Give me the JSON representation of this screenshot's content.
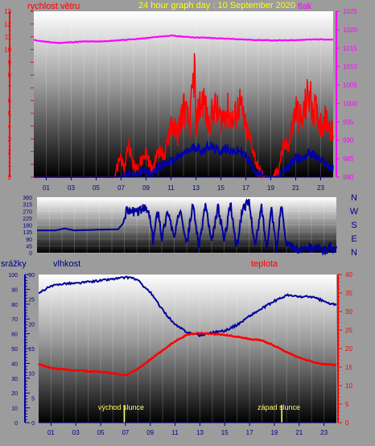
{
  "header": {
    "left_label": "rychlost větru",
    "title": "24 hour graph day : 10 September 2020",
    "right_label": "tlak"
  },
  "compass": [
    "N",
    "W",
    "S",
    "E",
    "N"
  ],
  "bottom_labels": {
    "rain": "srážky",
    "humidity": "vlhkost",
    "temperature": "teplota"
  },
  "sun": {
    "sunrise_label": "východ slunce",
    "sunrise_hour": 6.9,
    "sunset_label": "západ slunce",
    "sunset_hour": 19.6
  },
  "colors": {
    "wind": "#ff0000",
    "pressure": "#ff00ff",
    "direction": "#000099",
    "humidity": "#000099",
    "temperature": "#ff0000",
    "left_axis": "#ff0000",
    "right_axis": "#ff00ff",
    "rain_axis": "#0000aa"
  },
  "chart_data": [
    {
      "type": "line",
      "name": "wind-pressure",
      "x_ticks": [
        "01",
        "03",
        "05",
        "07",
        "09",
        "11",
        "13",
        "15",
        "17",
        "19",
        "21",
        "23"
      ],
      "left_axis": {
        "ticks": [
          0,
          1,
          2,
          3,
          4,
          5,
          6,
          7,
          8,
          9,
          10,
          11,
          12,
          13
        ],
        "ylim": [
          0,
          13
        ]
      },
      "right_axis": {
        "ticks": [
          980,
          985,
          990,
          995,
          1000,
          1005,
          1010,
          1015,
          1020,
          1025
        ],
        "ylim": [
          980,
          1025
        ]
      },
      "series": [
        {
          "key": "pressure",
          "axis": "right",
          "x": [
            0,
            1,
            2,
            3,
            4,
            5,
            6,
            7,
            8,
            9,
            10,
            11,
            12,
            13,
            14,
            15,
            16,
            17,
            18,
            19,
            20,
            21,
            22,
            23,
            24
          ],
          "values": [
            1017.2,
            1016.7,
            1016.4,
            1016.6,
            1016.8,
            1016.8,
            1016.9,
            1017.2,
            1017.4,
            1017.7,
            1018.1,
            1018.4,
            1018.1,
            1017.9,
            1017.8,
            1017.6,
            1017.5,
            1017.3,
            1017.2,
            1017.1,
            1017.1,
            1017.2,
            1017.3,
            1017.4,
            1017.3
          ]
        },
        {
          "key": "wind_gust",
          "axis": "left",
          "x": [
            0,
            6.5,
            7.0,
            7.2,
            7.6,
            8.0,
            8.6,
            9.0,
            9.5,
            10.0,
            10.5,
            11.0,
            11.5,
            12.0,
            12.5,
            12.9,
            13.0,
            13.2,
            13.6,
            14.0,
            14.5,
            15.0,
            15.5,
            16.0,
            16.5,
            17.0,
            17.5,
            18.0,
            18.5,
            19.0,
            19.5,
            20.0,
            20.5,
            21.0,
            21.5,
            22.0,
            22.5,
            23.0,
            23.5,
            24.0
          ],
          "values": [
            0,
            0,
            1.8,
            0.3,
            2.8,
            0.8,
            1.2,
            2.0,
            0.4,
            2.2,
            1.5,
            4.5,
            3.2,
            5.5,
            4.0,
            8.8,
            3.5,
            5.3,
            6.2,
            4.0,
            5.5,
            4.5,
            5.3,
            4.3,
            5.8,
            3.8,
            2.5,
            0.5,
            0,
            0,
            0.3,
            2.3,
            2.7,
            5.4,
            4.3,
            6.5,
            5.3,
            4.2,
            4.6,
            3.2
          ]
        },
        {
          "key": "wind_avg",
          "axis": "left",
          "x": [
            0,
            6.8,
            7.5,
            8.0,
            8.7,
            9.0,
            9.5,
            10.0,
            10.5,
            11.0,
            11.5,
            12.0,
            12.5,
            13.0,
            13.5,
            14.0,
            14.5,
            15.0,
            15.5,
            16.0,
            16.5,
            17.0,
            17.5,
            18.0,
            19.5,
            20.0,
            20.5,
            21.0,
            21.5,
            22.0,
            22.5,
            23.0,
            23.5,
            24.0
          ],
          "values": [
            0,
            0,
            0.3,
            0.1,
            0.5,
            0.4,
            0.2,
            0.8,
            1.0,
            1.2,
            1.5,
            1.8,
            2.1,
            2.4,
            2.0,
            2.5,
            2.2,
            2.0,
            2.3,
            1.9,
            2.1,
            1.6,
            0.9,
            0.2,
            0,
            0.4,
            0.9,
            1.5,
            1.4,
            1.9,
            1.7,
            1.3,
            1.0,
            0.6
          ]
        }
      ]
    },
    {
      "type": "line",
      "name": "wind-direction",
      "y_ticks": [
        0,
        45,
        90,
        135,
        180,
        225,
        270,
        315,
        360
      ],
      "ylim": [
        0,
        360
      ],
      "series": [
        {
          "key": "direction",
          "x": [
            0,
            1.5,
            2.2,
            3.0,
            5.0,
            6.5,
            6.9,
            7.2,
            8.0,
            8.6,
            9.0,
            9.3,
            9.7,
            10.0,
            10.5,
            11.0,
            11.5,
            12.0,
            12.5,
            13.0,
            13.5,
            14.0,
            14.5,
            15.0,
            15.5,
            16.0,
            16.5,
            17.0,
            17.5,
            18.0,
            18.4,
            18.8,
            19.2,
            19.6,
            20.0,
            20.4,
            20.8,
            21.2,
            21.6,
            22.0,
            22.5,
            23.0,
            23.5,
            24.0
          ],
          "values": [
            145,
            145,
            158,
            145,
            150,
            152,
            190,
            280,
            262,
            290,
            250,
            70,
            290,
            95,
            275,
            90,
            300,
            60,
            310,
            40,
            320,
            55,
            300,
            80,
            320,
            30,
            300,
            320,
            40,
            300,
            30,
            290,
            20,
            310,
            60,
            30,
            20,
            20,
            50,
            35,
            20,
            15,
            40,
            25
          ]
        }
      ]
    },
    {
      "type": "line",
      "name": "humidity-temperature",
      "x_ticks": [
        "01",
        "03",
        "05",
        "07",
        "09",
        "11",
        "13",
        "15",
        "17",
        "19",
        "21",
        "23"
      ],
      "left_axis": {
        "ticks": [
          0,
          10,
          20,
          30,
          40,
          50,
          60,
          70,
          80,
          90,
          100
        ],
        "ylim": [
          0,
          100
        ]
      },
      "mid_axis": {
        "ticks": [
          0,
          5,
          10,
          15,
          20,
          25,
          30
        ],
        "ylim": [
          0,
          30
        ]
      },
      "right_axis": {
        "ticks": [
          0,
          5,
          10,
          15,
          20,
          25,
          30,
          35,
          40
        ],
        "ylim": [
          0,
          40
        ]
      },
      "series": [
        {
          "key": "humidity",
          "axis": "left",
          "x": [
            0,
            0.5,
            1,
            2,
            3,
            4,
            5,
            6,
            7,
            7.5,
            8,
            9,
            10,
            11,
            12,
            13,
            14,
            15,
            16,
            17,
            18,
            19,
            20,
            21,
            22,
            23,
            23.5,
            24
          ],
          "values": [
            87,
            90,
            92,
            94,
            94,
            95,
            96,
            97,
            98,
            98,
            96,
            88,
            76,
            66,
            61,
            59,
            61,
            62,
            66,
            72,
            77,
            82,
            86,
            85,
            85,
            82,
            80,
            80
          ]
        },
        {
          "key": "temperature",
          "axis": "right",
          "x": [
            0,
            0.5,
            1,
            2,
            3,
            4,
            5,
            6,
            7,
            8,
            9,
            10,
            11,
            12,
            13,
            14,
            15,
            16,
            17,
            18,
            19,
            20,
            21,
            22,
            23,
            24
          ],
          "values": [
            15.8,
            15.2,
            14.8,
            14.4,
            14.1,
            13.9,
            13.7,
            13.3,
            12.8,
            14.5,
            17.0,
            19.5,
            22.0,
            23.8,
            24.2,
            24.0,
            23.7,
            23.2,
            22.6,
            22.2,
            20.8,
            19.0,
            17.5,
            16.5,
            15.8,
            15.5
          ]
        }
      ]
    }
  ]
}
